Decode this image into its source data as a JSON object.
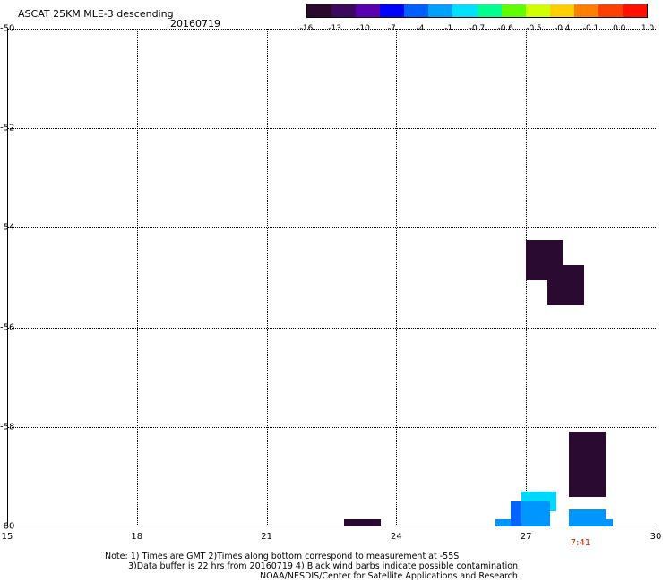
{
  "header": {
    "title": "ASCAT 25KM MLE-3 descending",
    "date": "20160719"
  },
  "colorbar": {
    "colors": [
      "#2b0a2e",
      "#3b0a5e",
      "#5a00b0",
      "#0000ff",
      "#0060ff",
      "#00a0ff",
      "#00e0ff",
      "#00ff90",
      "#60ff00",
      "#d0ff00",
      "#ffd000",
      "#ff8000",
      "#ff4000",
      "#ff1000"
    ],
    "ticks": [
      "-16",
      "-13",
      "-10",
      "-7",
      "-4",
      "-1",
      "-0.7",
      "-0.6",
      "-0.5",
      "-0.4",
      "-0.1",
      "0.0",
      "1.0"
    ]
  },
  "axes": {
    "x_ticks": [
      "15",
      "18",
      "21",
      "24",
      "27",
      "30"
    ],
    "y_ticks": [
      "-50",
      "-52",
      "-54",
      "-56",
      "-58",
      "-60"
    ]
  },
  "time_label": "7:41",
  "notes": [
    "Note: 1) Times are GMT 2)Times along bottom correspond to measurement at -55S",
    "3)Data buffer is 22 hrs from 20160719 4) Black wind barbs indicate possible contamination",
    "NOAA/NESDIS/Center for Satellite Applications and Research"
  ],
  "chart_data": {
    "type": "heatmap",
    "title": "ASCAT 25KM MLE-3 descending",
    "xlim": [
      15,
      30
    ],
    "ylim": [
      -60,
      -50
    ],
    "cells": [
      {
        "lon": [
          27.0,
          27.85
        ],
        "lat": [
          -55.05,
          -54.25
        ],
        "color": "#2a0a30"
      },
      {
        "lon": [
          27.5,
          28.35
        ],
        "lat": [
          -55.55,
          -54.75
        ],
        "color": "#2a0a30"
      },
      {
        "lon": [
          28.0,
          28.85
        ],
        "lat": [
          -59.4,
          -58.1
        ],
        "color": "#2a0a30"
      },
      {
        "lon": [
          22.8,
          23.65
        ],
        "lat": [
          -60.0,
          -59.85
        ],
        "color": "#2a0a30"
      },
      {
        "lon": [
          26.3,
          27.55
        ],
        "lat": [
          -60.0,
          -59.85
        ],
        "color": "#0096ff"
      },
      {
        "lon": [
          26.65,
          27.55
        ],
        "lat": [
          -60.0,
          -59.5
        ],
        "color": "#0064ff"
      },
      {
        "lon": [
          26.9,
          27.7
        ],
        "lat": [
          -59.7,
          -59.3
        ],
        "color": "#00d8ff"
      },
      {
        "lon": [
          26.9,
          27.55
        ],
        "lat": [
          -60.0,
          -59.5
        ],
        "color": "#0096ff"
      },
      {
        "lon": [
          28.0,
          28.85
        ],
        "lat": [
          -59.85,
          -59.65
        ],
        "color": "#0096ff"
      },
      {
        "lon": [
          28.0,
          29.0
        ],
        "lat": [
          -60.0,
          -59.85
        ],
        "color": "#0096ff"
      }
    ]
  }
}
